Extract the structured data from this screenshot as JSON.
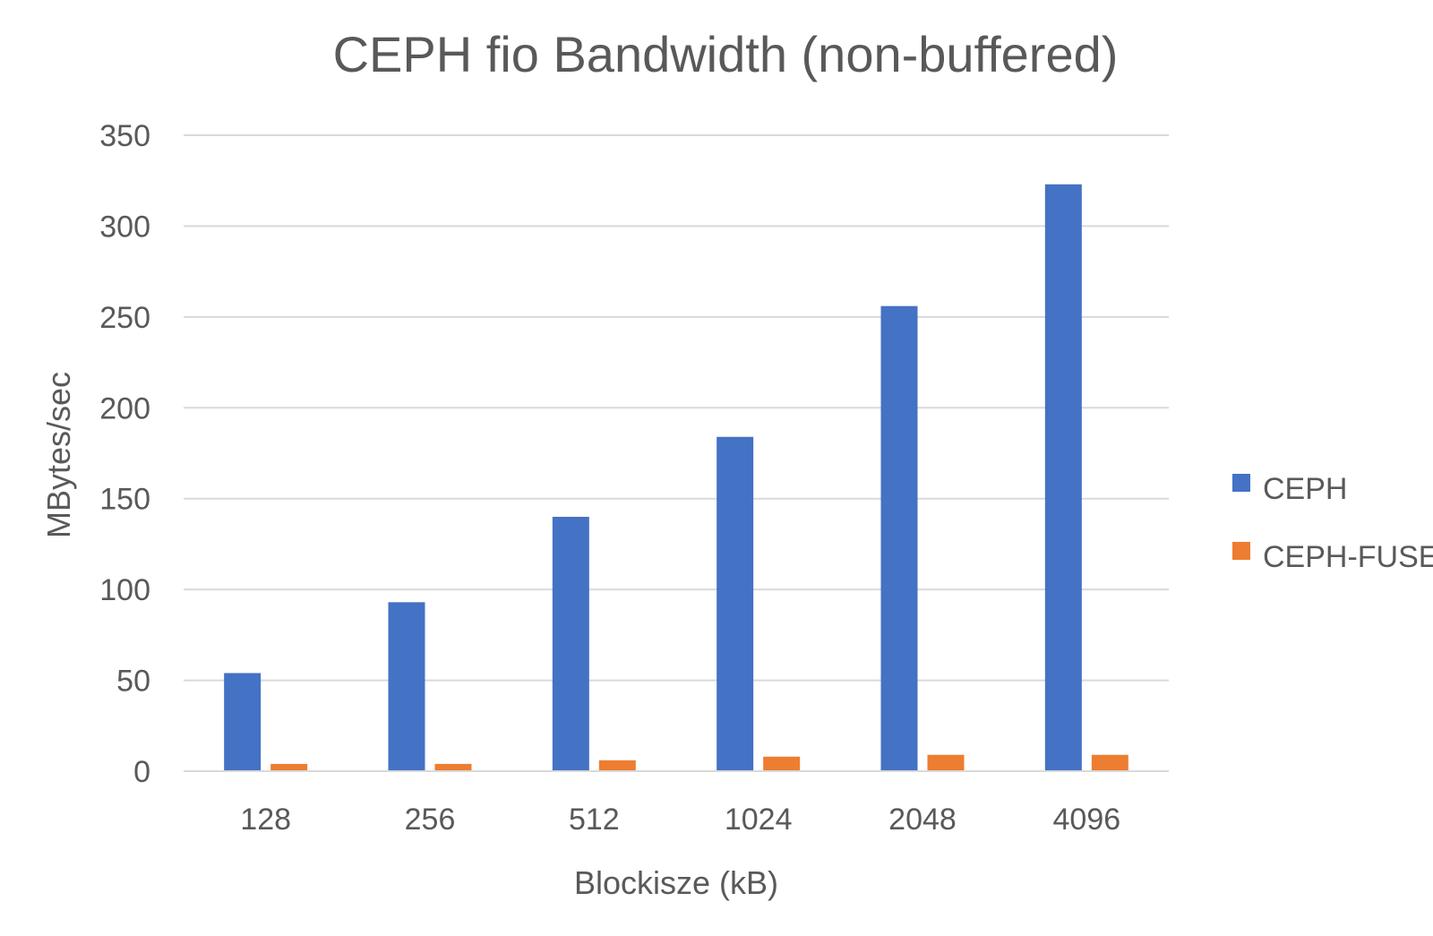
{
  "chart_data": {
    "type": "bar",
    "title": "CEPH fio Bandwidth (non-buffered)",
    "xlabel": "Blockisze (kB)",
    "ylabel": "MBytes/sec",
    "categories": [
      "128",
      "256",
      "512",
      "1024",
      "2048",
      "4096"
    ],
    "series": [
      {
        "name": "CEPH",
        "color": "#4472c4",
        "values": [
          54,
          93,
          140,
          184,
          256,
          323
        ]
      },
      {
        "name": "CEPH-FUSE",
        "color": "#ed7d31",
        "values": [
          4,
          4,
          6,
          8,
          9,
          9
        ]
      }
    ],
    "ylim": [
      0,
      350
    ],
    "yticks": [
      0,
      50,
      100,
      150,
      200,
      250,
      300,
      350
    ],
    "grid": true,
    "legend_position": "right"
  }
}
